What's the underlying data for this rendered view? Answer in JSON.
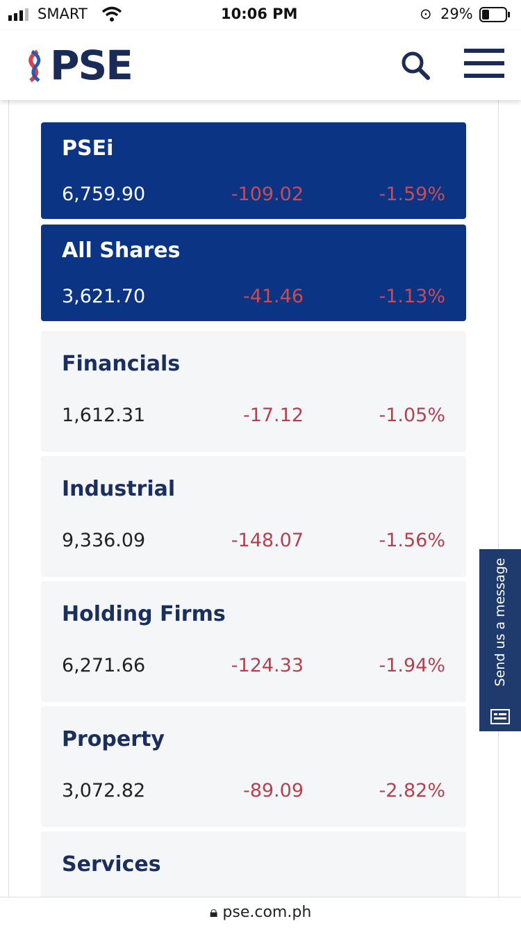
{
  "status_bar": {
    "carrier": "SMART",
    "time": "10:06 PM",
    "battery": "29%"
  },
  "header": {
    "logo": "PSE"
  },
  "indices": [
    {
      "name": "PSEi",
      "value": "6,759.90",
      "change": "-109.02",
      "percent": "-1.59%",
      "highlight": true
    },
    {
      "name": "All Shares",
      "value": "3,621.70",
      "change": "-41.46",
      "percent": "-1.13%",
      "highlight": true
    },
    {
      "name": "Financials",
      "value": "1,612.31",
      "change": "-17.12",
      "percent": "-1.05%",
      "highlight": false
    },
    {
      "name": "Industrial",
      "value": "9,336.09",
      "change": "-148.07",
      "percent": "-1.56%",
      "highlight": false
    },
    {
      "name": "Holding Firms",
      "value": "6,271.66",
      "change": "-124.33",
      "percent": "-1.94%",
      "highlight": false
    },
    {
      "name": "Property",
      "value": "3,072.82",
      "change": "-89.09",
      "percent": "-2.82%",
      "highlight": false
    },
    {
      "name": "Services",
      "highlight": false
    }
  ],
  "side_tab": {
    "label": "Send us a message"
  },
  "url_bar": {
    "url": "pse.com.ph"
  }
}
